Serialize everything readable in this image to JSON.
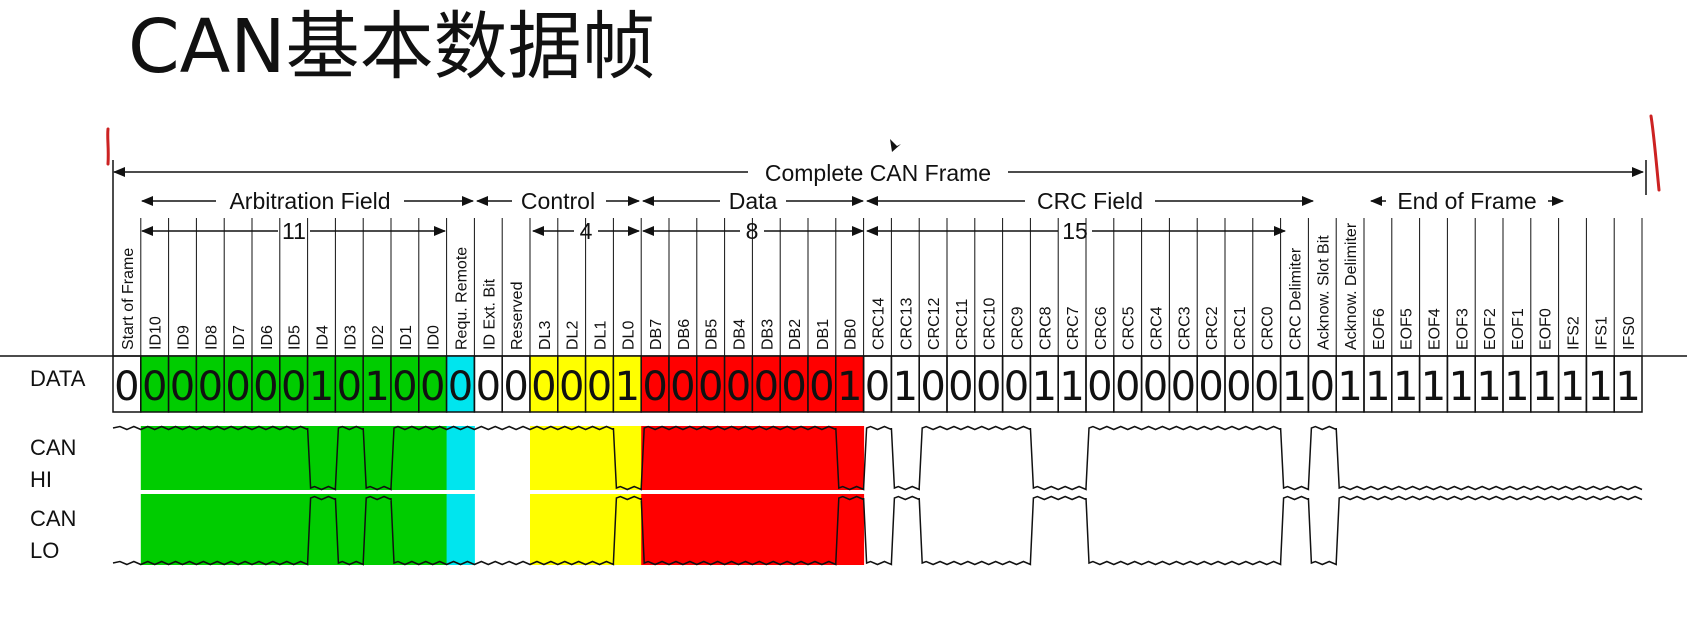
{
  "title": "CAN基本数据帧",
  "row_labels": {
    "data": "DATA",
    "can_hi": [
      "CAN",
      "HI"
    ],
    "can_lo": [
      "CAN",
      "LO"
    ]
  },
  "spans": {
    "complete": "Complete CAN Frame",
    "arbitration": "Arbitration Field",
    "control": "Control",
    "data": "Data",
    "crc": "CRC Field",
    "eof": "End of Frame",
    "arb_count": "11",
    "dl_count": "4",
    "db_count": "8",
    "crc_count": "15"
  },
  "colors": {
    "arbitration": "#00cc00",
    "rtr": "#00e5ee",
    "dlc": "#ffff00",
    "data": "#ff0000",
    "marker": "#cc2222"
  },
  "bits": [
    {
      "name": "Start of Frame",
      "value": "0",
      "group": "none"
    },
    {
      "name": "ID10",
      "value": "0",
      "group": "arbitration"
    },
    {
      "name": "ID9",
      "value": "0",
      "group": "arbitration"
    },
    {
      "name": "ID8",
      "value": "0",
      "group": "arbitration"
    },
    {
      "name": "ID7",
      "value": "0",
      "group": "arbitration"
    },
    {
      "name": "ID6",
      "value": "0",
      "group": "arbitration"
    },
    {
      "name": "ID5",
      "value": "0",
      "group": "arbitration"
    },
    {
      "name": "ID4",
      "value": "1",
      "group": "arbitration"
    },
    {
      "name": "ID3",
      "value": "0",
      "group": "arbitration"
    },
    {
      "name": "ID2",
      "value": "1",
      "group": "arbitration"
    },
    {
      "name": "ID1",
      "value": "0",
      "group": "arbitration"
    },
    {
      "name": "ID0",
      "value": "0",
      "group": "arbitration"
    },
    {
      "name": "Requ. Remote",
      "value": "0",
      "group": "rtr"
    },
    {
      "name": "ID Ext. Bit",
      "value": "0",
      "group": "none"
    },
    {
      "name": "Reserved",
      "value": "0",
      "group": "none"
    },
    {
      "name": "DL3",
      "value": "0",
      "group": "dlc"
    },
    {
      "name": "DL2",
      "value": "0",
      "group": "dlc"
    },
    {
      "name": "DL1",
      "value": "0",
      "group": "dlc"
    },
    {
      "name": "DL0",
      "value": "1",
      "group": "dlc"
    },
    {
      "name": "DB7",
      "value": "0",
      "group": "data"
    },
    {
      "name": "DB6",
      "value": "0",
      "group": "data"
    },
    {
      "name": "DB5",
      "value": "0",
      "group": "data"
    },
    {
      "name": "DB4",
      "value": "0",
      "group": "data"
    },
    {
      "name": "DB3",
      "value": "0",
      "group": "data"
    },
    {
      "name": "DB2",
      "value": "0",
      "group": "data"
    },
    {
      "name": "DB1",
      "value": "0",
      "group": "data"
    },
    {
      "name": "DB0",
      "value": "1",
      "group": "data"
    },
    {
      "name": "CRC14",
      "value": "0",
      "group": "none"
    },
    {
      "name": "CRC13",
      "value": "1",
      "group": "none"
    },
    {
      "name": "CRC12",
      "value": "0",
      "group": "none"
    },
    {
      "name": "CRC11",
      "value": "0",
      "group": "none"
    },
    {
      "name": "CRC10",
      "value": "0",
      "group": "none"
    },
    {
      "name": "CRC9",
      "value": "0",
      "group": "none"
    },
    {
      "name": "CRC8",
      "value": "1",
      "group": "none"
    },
    {
      "name": "CRC7",
      "value": "1",
      "group": "none"
    },
    {
      "name": "CRC6",
      "value": "0",
      "group": "none"
    },
    {
      "name": "CRC5",
      "value": "0",
      "group": "none"
    },
    {
      "name": "CRC4",
      "value": "0",
      "group": "none"
    },
    {
      "name": "CRC3",
      "value": "0",
      "group": "none"
    },
    {
      "name": "CRC2",
      "value": "0",
      "group": "none"
    },
    {
      "name": "CRC1",
      "value": "0",
      "group": "none"
    },
    {
      "name": "CRC0",
      "value": "0",
      "group": "none"
    },
    {
      "name": "CRC Delimiter",
      "value": "1",
      "group": "none"
    },
    {
      "name": "Acknow. Slot Bit",
      "value": "0",
      "group": "none"
    },
    {
      "name": "Acknow. Delimiter",
      "value": "1",
      "group": "none"
    },
    {
      "name": "EOF6",
      "value": "1",
      "group": "none"
    },
    {
      "name": "EOF5",
      "value": "1",
      "group": "none"
    },
    {
      "name": "EOF4",
      "value": "1",
      "group": "none"
    },
    {
      "name": "EOF3",
      "value": "1",
      "group": "none"
    },
    {
      "name": "EOF2",
      "value": "1",
      "group": "none"
    },
    {
      "name": "EOF1",
      "value": "1",
      "group": "none"
    },
    {
      "name": "EOF0",
      "value": "1",
      "group": "none"
    },
    {
      "name": "IFS2",
      "value": "1",
      "group": "none"
    },
    {
      "name": "IFS1",
      "value": "1",
      "group": "none"
    },
    {
      "name": "IFS0",
      "value": "1",
      "group": "none"
    }
  ]
}
